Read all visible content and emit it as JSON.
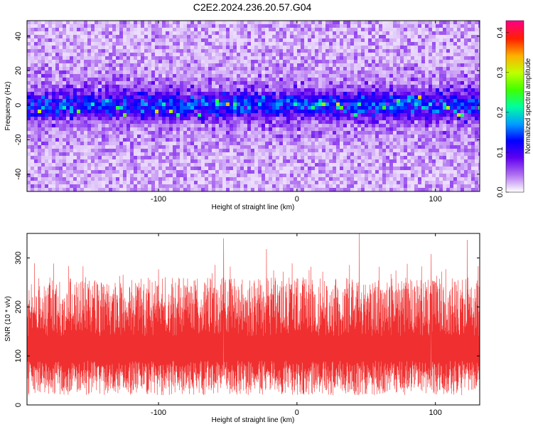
{
  "title": "C2E2.2024.236.20.57.G04",
  "chart_data": [
    {
      "type": "heatmap",
      "xlabel": "Height of straight line (km)",
      "ylabel": "Frequency (Hz)",
      "xlim": [
        -195,
        132
      ],
      "ylim": [
        -50,
        49
      ],
      "xticks": [
        -100,
        0,
        100
      ],
      "yticks": [
        -40,
        -20,
        0,
        20,
        40
      ],
      "colorbar": {
        "label": "Normalized spectral amplitude",
        "range": [
          0,
          0.43
        ],
        "ticks": [
          0,
          0.1,
          0.2,
          0.3,
          0.4
        ],
        "colormap": [
          "#ffffff",
          "#b070f0",
          "#6000f0",
          "#0000ff",
          "#00a0ff",
          "#00ffa0",
          "#40ff00",
          "#c0ff00",
          "#ffb000",
          "#ff2000",
          "#ff0080"
        ]
      },
      "pattern": "Noise band centred near 0 Hz (about -8 to 8 Hz) with amplitude mostly 0.1-0.2 and sparse peaks up to about 0.33; background amplitude about 0.02-0.06"
    },
    {
      "type": "line",
      "xlabel": "Height of straight line (km)",
      "ylabel": "SNR (10 * v/v)",
      "xlim": [
        -195,
        132
      ],
      "ylim": [
        0,
        350
      ],
      "xticks": [
        -100,
        0,
        100
      ],
      "yticks": [
        0,
        100,
        200,
        300
      ],
      "color": "#f03030",
      "typical_range": [
        20,
        260
      ],
      "mean": 100,
      "peaks": [
        {
          "x": -53,
          "y": 340
        },
        {
          "x": 45,
          "y": 350
        },
        {
          "x": 123,
          "y": 337
        },
        {
          "x": -22,
          "y": 318
        },
        {
          "x": 97,
          "y": 308
        }
      ]
    }
  ]
}
